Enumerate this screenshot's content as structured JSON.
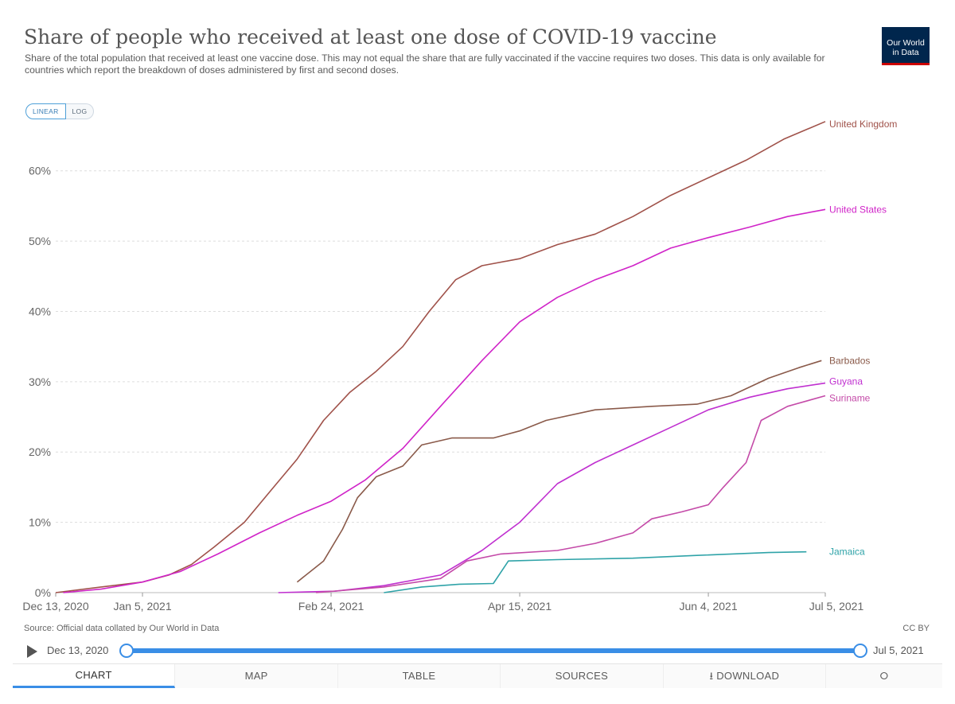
{
  "header": {
    "title": "Share of people who received at least one dose of COVID-19 vaccine",
    "subtitle": "Share of the total population that received at least one vaccine dose. This may not equal the share that are fully vaccinated if the vaccine requires two doses. This data is only available for countries which report the breakdown of doses administered by first and second doses.",
    "logo_line1": "Our World",
    "logo_line2": "in Data",
    "scale_linear": "LINEAR",
    "scale_log": "LOG"
  },
  "footer": {
    "source": "Source: Official data collated by Our World in Data",
    "license": "CC BY"
  },
  "timeline": {
    "start_label": "Dec 13, 2020",
    "end_label": "Jul 5, 2021",
    "range_fraction": [
      0,
      1
    ]
  },
  "tabs": {
    "chart": "CHART",
    "map": "MAP",
    "table": "TABLE",
    "sources": "SOURCES",
    "download": "DOWNLOAD"
  },
  "colors": {
    "accent": "#3a8ee6",
    "United Kingdom": "#a0524a",
    "United States": "#d024c8",
    "Barbados": "#8a5a4a",
    "Guyana": "#c030d0",
    "Suriname": "#c44aa8",
    "Jamaica": "#2fa3a8"
  },
  "chart_data": {
    "type": "line",
    "title": "Share of people who received at least one dose of COVID-19 vaccine",
    "xlabel": "",
    "ylabel": "",
    "x_range": [
      "2020-12-13",
      "2021-07-05"
    ],
    "ylim": [
      0,
      68
    ],
    "y_ticks": [
      0,
      10,
      20,
      30,
      40,
      50,
      60
    ],
    "y_tick_labels": [
      "0%",
      "10%",
      "20%",
      "30%",
      "40%",
      "50%",
      "60%"
    ],
    "x_ticks": [
      "2020-12-13",
      "2021-01-05",
      "2021-02-24",
      "2021-04-15",
      "2021-06-04",
      "2021-07-05"
    ],
    "x_tick_labels": [
      "Dec 13, 2020",
      "Jan 5, 2021",
      "Feb 24, 2021",
      "Apr 15, 2021",
      "Jun 4, 2021",
      "Jul 5, 2021"
    ],
    "grid": "horizontal dashed",
    "legend": "inline labels at line ends",
    "series": [
      {
        "name": "United Kingdom",
        "points": [
          [
            "2020-12-13",
            0
          ],
          [
            "2020-12-25",
            0.8
          ],
          [
            "2021-01-05",
            1.5
          ],
          [
            "2021-01-12",
            2.5
          ],
          [
            "2021-01-18",
            4
          ],
          [
            "2021-01-24",
            6.5
          ],
          [
            "2021-02-01",
            10
          ],
          [
            "2021-02-08",
            14.5
          ],
          [
            "2021-02-15",
            19
          ],
          [
            "2021-02-22",
            24.5
          ],
          [
            "2021-03-01",
            28.5
          ],
          [
            "2021-03-08",
            31.5
          ],
          [
            "2021-03-15",
            35
          ],
          [
            "2021-03-22",
            40
          ],
          [
            "2021-03-29",
            44.5
          ],
          [
            "2021-04-05",
            46.5
          ],
          [
            "2021-04-15",
            47.5
          ],
          [
            "2021-04-25",
            49.5
          ],
          [
            "2021-05-05",
            51
          ],
          [
            "2021-05-15",
            53.5
          ],
          [
            "2021-05-25",
            56.5
          ],
          [
            "2021-06-04",
            59
          ],
          [
            "2021-06-14",
            61.5
          ],
          [
            "2021-06-24",
            64.5
          ],
          [
            "2021-07-05",
            67
          ]
        ]
      },
      {
        "name": "United States",
        "points": [
          [
            "2020-12-15",
            0
          ],
          [
            "2020-12-25",
            0.5
          ],
          [
            "2021-01-05",
            1.5
          ],
          [
            "2021-01-15",
            3
          ],
          [
            "2021-01-25",
            5.5
          ],
          [
            "2021-02-05",
            8.5
          ],
          [
            "2021-02-15",
            11
          ],
          [
            "2021-02-24",
            13
          ],
          [
            "2021-03-05",
            16
          ],
          [
            "2021-03-15",
            20.5
          ],
          [
            "2021-03-25",
            26.5
          ],
          [
            "2021-04-05",
            33
          ],
          [
            "2021-04-15",
            38.5
          ],
          [
            "2021-04-25",
            42
          ],
          [
            "2021-05-05",
            44.5
          ],
          [
            "2021-05-15",
            46.5
          ],
          [
            "2021-05-25",
            49
          ],
          [
            "2021-06-04",
            50.5
          ],
          [
            "2021-06-15",
            52
          ],
          [
            "2021-06-25",
            53.5
          ],
          [
            "2021-07-05",
            54.5
          ]
        ]
      },
      {
        "name": "Barbados",
        "points": [
          [
            "2021-02-15",
            1.5
          ],
          [
            "2021-02-22",
            4.5
          ],
          [
            "2021-02-27",
            9
          ],
          [
            "2021-03-03",
            13.5
          ],
          [
            "2021-03-08",
            16.5
          ],
          [
            "2021-03-15",
            18
          ],
          [
            "2021-03-20",
            21
          ],
          [
            "2021-03-28",
            22
          ],
          [
            "2021-04-08",
            22
          ],
          [
            "2021-04-15",
            23
          ],
          [
            "2021-04-22",
            24.5
          ],
          [
            "2021-05-05",
            26
          ],
          [
            "2021-05-20",
            26.5
          ],
          [
            "2021-06-01",
            26.8
          ],
          [
            "2021-06-10",
            28
          ],
          [
            "2021-06-20",
            30.5
          ],
          [
            "2021-06-28",
            32
          ],
          [
            "2021-07-04",
            33
          ]
        ]
      },
      {
        "name": "Guyana",
        "points": [
          [
            "2021-02-10",
            0
          ],
          [
            "2021-02-25",
            0.2
          ],
          [
            "2021-03-10",
            1
          ],
          [
            "2021-03-25",
            2.5
          ],
          [
            "2021-04-05",
            6
          ],
          [
            "2021-04-15",
            10
          ],
          [
            "2021-04-25",
            15.5
          ],
          [
            "2021-05-05",
            18.5
          ],
          [
            "2021-05-15",
            21
          ],
          [
            "2021-05-25",
            23.5
          ],
          [
            "2021-06-04",
            26
          ],
          [
            "2021-06-15",
            27.8
          ],
          [
            "2021-06-25",
            29
          ],
          [
            "2021-07-05",
            29.8
          ]
        ]
      },
      {
        "name": "Suriname",
        "points": [
          [
            "2021-02-20",
            0
          ],
          [
            "2021-03-10",
            0.8
          ],
          [
            "2021-03-25",
            2
          ],
          [
            "2021-04-01",
            4.5
          ],
          [
            "2021-04-10",
            5.5
          ],
          [
            "2021-04-25",
            6
          ],
          [
            "2021-05-05",
            7
          ],
          [
            "2021-05-15",
            8.5
          ],
          [
            "2021-05-20",
            10.5
          ],
          [
            "2021-05-28",
            11.5
          ],
          [
            "2021-06-04",
            12.5
          ],
          [
            "2021-06-08",
            15
          ],
          [
            "2021-06-14",
            18.5
          ],
          [
            "2021-06-18",
            24.5
          ],
          [
            "2021-06-25",
            26.5
          ],
          [
            "2021-07-05",
            28
          ]
        ]
      },
      {
        "name": "Jamaica",
        "points": [
          [
            "2021-03-10",
            0
          ],
          [
            "2021-03-20",
            0.8
          ],
          [
            "2021-03-30",
            1.2
          ],
          [
            "2021-04-08",
            1.3
          ],
          [
            "2021-04-12",
            4.5
          ],
          [
            "2021-04-25",
            4.7
          ],
          [
            "2021-05-15",
            4.9
          ],
          [
            "2021-06-01",
            5.3
          ],
          [
            "2021-06-20",
            5.7
          ],
          [
            "2021-06-30",
            5.8
          ]
        ]
      }
    ]
  }
}
